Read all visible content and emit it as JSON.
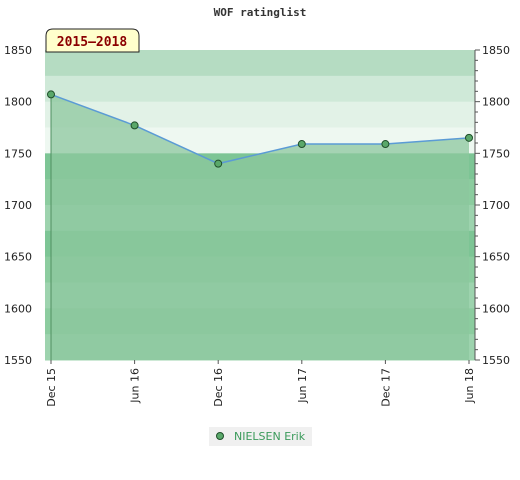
{
  "chart_data": {
    "type": "area",
    "title": "WOF ratinglist",
    "badge": "2015–2018",
    "categories": [
      "Dec 15",
      "Jun 16",
      "Dec 16",
      "Jun 17",
      "Dec 17",
      "Jun 18"
    ],
    "series": [
      {
        "name": "NIELSEN Erik",
        "values": [
          1807,
          1777,
          1740,
          1759,
          1759,
          1765
        ]
      }
    ],
    "ylim": [
      1550,
      1850
    ],
    "yticks": [
      1550,
      1600,
      1650,
      1700,
      1750,
      1800,
      1850
    ],
    "xlabel": "",
    "ylabel": "",
    "grid": true,
    "legend": "bottom-center",
    "colors": {
      "line": "#5b9bd5",
      "area": "#8cc79e",
      "marker_fill": "#5aa86a",
      "marker_stroke": "#1f4f2a",
      "badge_fill": "#ffffcc",
      "badge_text": "#8b0000",
      "legend_bg": "#f0f0f0",
      "legend_text": "#3a9a5a"
    }
  }
}
